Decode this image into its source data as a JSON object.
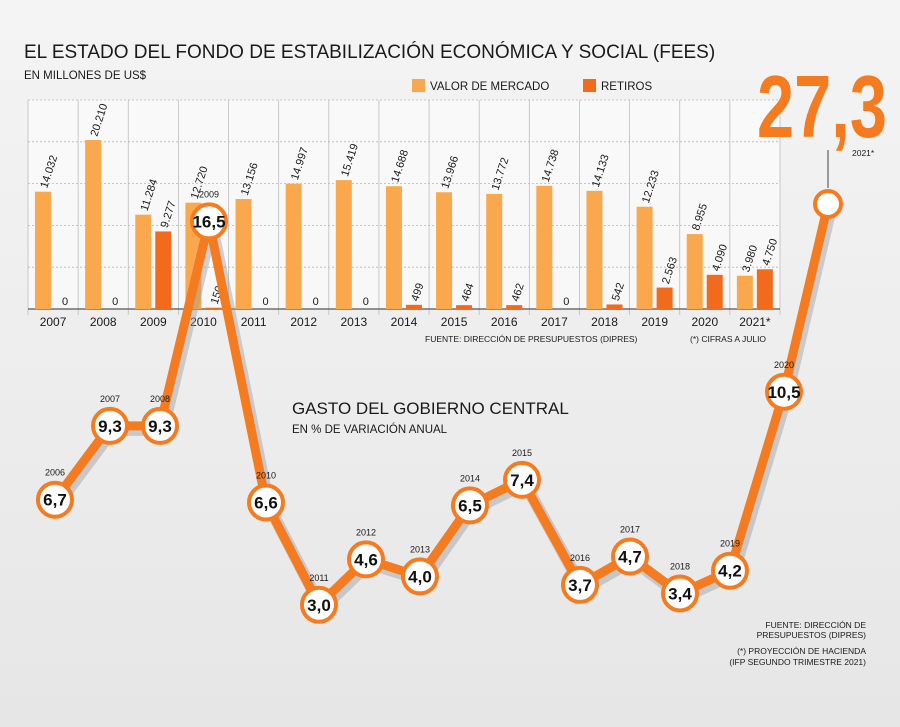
{
  "chart_data": [
    {
      "type": "bar",
      "title": "EL ESTADO DEL FONDO DE ESTABILIZACIÓN ECONÓMICA Y SOCIAL (FEES)",
      "subtitle": "EN MILLONES DE US$",
      "categories": [
        "2007",
        "2008",
        "2009",
        "2010",
        "2011",
        "2012",
        "2013",
        "2014",
        "2015",
        "2016",
        "2017",
        "2018",
        "2019",
        "2020",
        "2021*"
      ],
      "series": [
        {
          "name": "VALOR DE MERCADO",
          "color": "#f9a84e",
          "values": [
            14032,
            20210,
            11284,
            12720,
            13156,
            14997,
            15419,
            14688,
            13966,
            13772,
            14738,
            14133,
            12233,
            8955,
            3980
          ],
          "labels": [
            "14.032",
            "20.210",
            "11.284",
            "12.720",
            "13.156",
            "14.997",
            "15.419",
            "14.688",
            "13.966",
            "13.772",
            "14.738",
            "14.133",
            "12.233",
            "8.955",
            "3.980"
          ]
        },
        {
          "name": "RETIROS",
          "color": "#f26a1b",
          "values": [
            0,
            0,
            9277,
            150,
            0,
            0,
            0,
            499,
            464,
            462,
            0,
            542,
            2563,
            4090,
            4750
          ],
          "labels": [
            "0",
            "0",
            "9.277",
            "150",
            "0",
            "0",
            "0",
            "499",
            "464",
            "462",
            "0",
            "542",
            "2.563",
            "4.090",
            "4.750"
          ]
        }
      ],
      "ylim": [
        0,
        25000
      ],
      "grid": true,
      "legend": "top",
      "source": "FUENTE: DIRECCIÓN DE PRESUPUESTOS (DIPRES)",
      "footnote": "(*) CIFRAS A JULIO"
    },
    {
      "type": "line",
      "title": "GASTO DEL GOBIERNO CENTRAL",
      "subtitle": "EN % DE VARIACIÓN ANUAL",
      "x": [
        "2006",
        "2007",
        "2008",
        "2009",
        "2010",
        "2011",
        "2012",
        "2013",
        "2014",
        "2015",
        "2016",
        "2017",
        "2018",
        "2019",
        "2020",
        "2021*"
      ],
      "values": [
        6.7,
        9.3,
        9.3,
        16.5,
        6.6,
        3.0,
        4.6,
        4.0,
        6.5,
        7.4,
        3.7,
        4.7,
        3.4,
        4.2,
        10.5,
        27.3
      ],
      "labels": [
        "6,7",
        "9,3",
        "9,3",
        "16,5",
        "6,6",
        "3,0",
        "4,6",
        "4,0",
        "6,5",
        "7,4",
        "3,7",
        "4,7",
        "3,4",
        "4,2",
        "10,5",
        "27,3"
      ],
      "color": "#f47b20",
      "highlight": {
        "value_label": "27,3",
        "year_label": "2021*"
      },
      "source": "FUENTE: DIRECCIÓN DE PRESUPUESTOS (DIPRES)",
      "footnote": "(*) PROYECCIÓN DE HACIENDA (IFP SEGUNDO TRIMESTRE 2021)"
    }
  ],
  "bar_source_line1": "FUENTE: DIRECCIÓN DE",
  "bar_source_line2": "PRESUPUESTOS (DIPRES)",
  "line_note_line1": "(*) PROYECCIÓN DE HACIENDA",
  "line_note_line2": "(IFP SEGUNDO TRIMESTRE 2021)"
}
